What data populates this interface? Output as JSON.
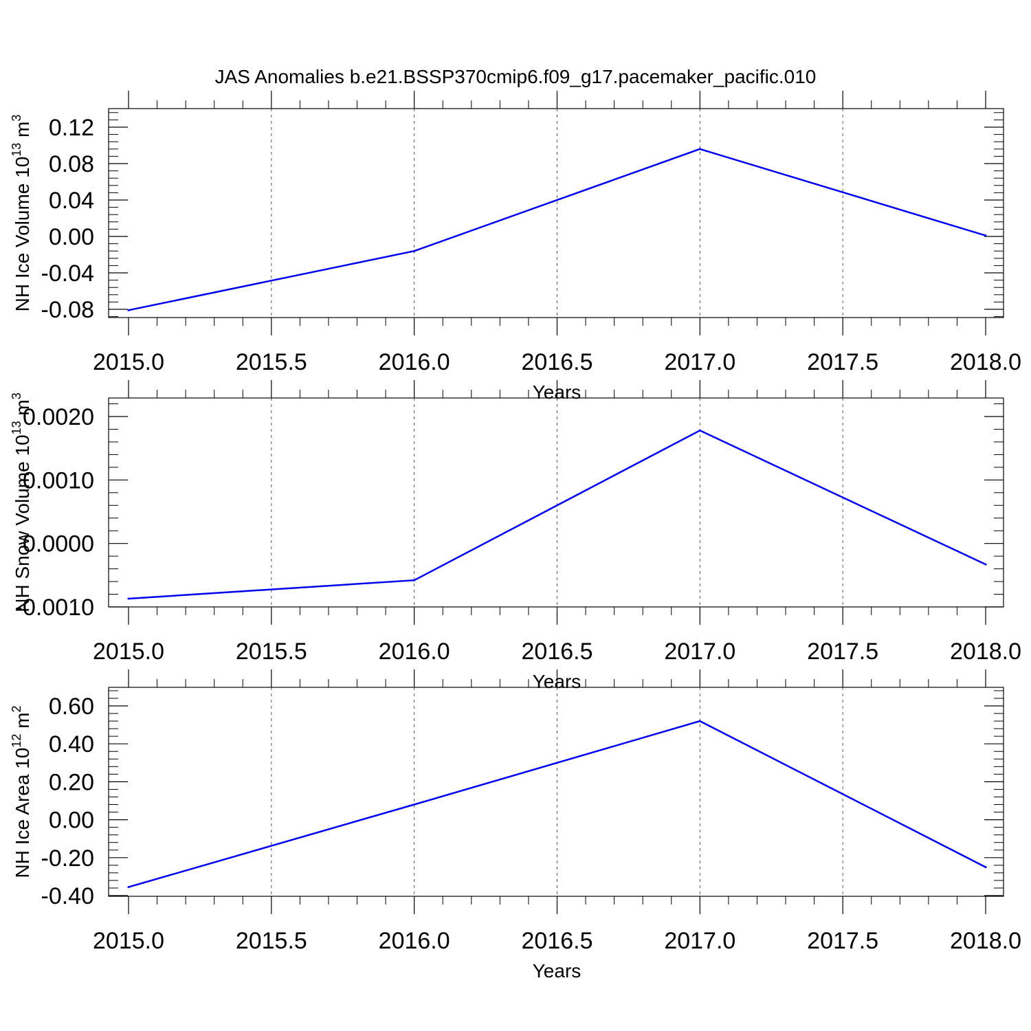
{
  "figure": {
    "title": "JAS Anomalies b.e21.BSSP370cmip6.f09_g17.pacemaker_pacific.010"
  },
  "colors": {
    "line": "#0000ee",
    "axis": "#000000",
    "grid": "#555555"
  },
  "chart_data": [
    {
      "type": "line",
      "ylabel": "NH Ice Volume 10",
      "ylabel_exponent": "13",
      "ylabel_unit": "m",
      "ylabel_unit_exponent": "3",
      "xlabel": "Years",
      "x": [
        2015.0,
        2016.0,
        2017.0,
        2018.0
      ],
      "y": [
        -0.081,
        -0.016,
        0.096,
        0.001
      ],
      "xlim": [
        2015.0,
        2018.0
      ],
      "ylim": [
        -0.09,
        0.12
      ],
      "xticks": [
        2015.0,
        2015.5,
        2016.0,
        2016.5,
        2017.0,
        2017.5,
        2018.0
      ],
      "xtick_labels": [
        "2015.0",
        "2015.5",
        "2016.0",
        "2016.5",
        "2017.0",
        "2017.5",
        "2018.0"
      ],
      "yticks": [
        -0.08,
        -0.04,
        0.0,
        0.04,
        0.08,
        0.12
      ],
      "ytick_labels": [
        "-0.08",
        "-0.04",
        "0.00",
        "0.04",
        "0.08",
        "0.12"
      ],
      "grid": "vertical dashed"
    },
    {
      "type": "line",
      "ylabel": "NH Snow Volume 10",
      "ylabel_exponent": "13",
      "ylabel_unit": "m",
      "ylabel_unit_exponent": "3",
      "xlabel": "Years",
      "x": [
        2015.0,
        2016.0,
        2017.0,
        2018.0
      ],
      "y": [
        -0.00087,
        -0.00058,
        0.00178,
        -0.00033
      ],
      "xlim": [
        2015.0,
        2018.0
      ],
      "ylim": [
        -0.001,
        0.002
      ],
      "xticks": [
        2015.0,
        2015.5,
        2016.0,
        2016.5,
        2017.0,
        2017.5,
        2018.0
      ],
      "xtick_labels": [
        "2015.0",
        "2015.5",
        "2016.0",
        "2016.5",
        "2017.0",
        "2017.5",
        "2018.0"
      ],
      "yticks": [
        -0.001,
        0.0,
        0.001,
        0.002
      ],
      "ytick_labels": [
        "-0.0010",
        "0.0000",
        "0.0010",
        "0.0020"
      ],
      "grid": "vertical dashed"
    },
    {
      "type": "line",
      "ylabel": "NH Ice Area 10",
      "ylabel_exponent": "12",
      "ylabel_unit": "m",
      "ylabel_unit_exponent": "2",
      "xlabel": "Years",
      "x": [
        2015.0,
        2016.0,
        2017.0,
        2018.0
      ],
      "y": [
        -0.355,
        0.08,
        0.52,
        -0.25
      ],
      "xlim": [
        2015.0,
        2018.0
      ],
      "ylim": [
        -0.4,
        0.6
      ],
      "xticks": [
        2015.0,
        2015.5,
        2016.0,
        2016.5,
        2017.0,
        2017.5,
        2018.0
      ],
      "xtick_labels": [
        "2015.0",
        "2015.5",
        "2016.0",
        "2016.5",
        "2017.0",
        "2017.5",
        "2018.0"
      ],
      "yticks": [
        -0.4,
        -0.2,
        0.0,
        0.2,
        0.4,
        0.6
      ],
      "ytick_labels": [
        "-0.40",
        "-0.20",
        "0.00",
        "0.20",
        "0.40",
        "0.60"
      ],
      "grid": "vertical dashed"
    }
  ]
}
